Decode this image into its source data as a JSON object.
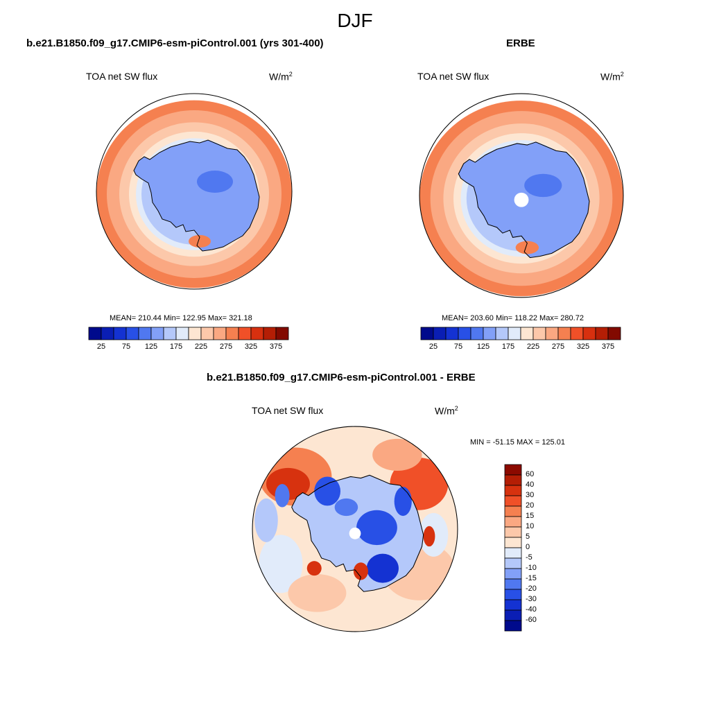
{
  "title": "DJF",
  "panels": [
    {
      "title": "b.e21.B1850.f09_g17.CMIP6-esm-piControl.001 (yrs 301-400)",
      "variable": "TOA net SW flux",
      "units_base": "W/m",
      "units_exp": "2",
      "stats": "MEAN= 210.44  Min= 122.95  Max= 321.18"
    },
    {
      "title": "ERBE",
      "variable": "TOA net SW flux",
      "units_base": "W/m",
      "units_exp": "2",
      "stats": "MEAN= 203.60  Min= 118.22  Max= 280.72"
    },
    {
      "title": "b.e21.B1850.f09_g17.CMIP6-esm-piControl.001 - ERBE",
      "variable": "TOA net SW flux",
      "units_base": "W/m",
      "units_exp": "2",
      "stats": "MIN = -51.15 MAX = 125.01"
    }
  ],
  "field_colorbar": {
    "labels": [
      "25",
      "75",
      "125",
      "175",
      "225",
      "275",
      "325",
      "375"
    ],
    "colors": [
      "#000a8c",
      "#0a1eb4",
      "#1432d2",
      "#2850e6",
      "#5078f0",
      "#82a0f8",
      "#b4c8fa",
      "#e1ebfa",
      "#fde6d2",
      "#fcc8aa",
      "#faa882",
      "#f58050",
      "#f05028",
      "#d7300f",
      "#b41e05",
      "#820a00"
    ]
  },
  "diff_colorbar": {
    "labels": [
      "60",
      "40",
      "30",
      "20",
      "15",
      "10",
      "5",
      "0",
      "-5",
      "-10",
      "-15",
      "-20",
      "-30",
      "-40",
      "-60"
    ],
    "colors": [
      "#8c0a00",
      "#b41e05",
      "#d7320f",
      "#f05028",
      "#f58050",
      "#faa882",
      "#fcc8aa",
      "#fde6d2",
      "#e1ebfa",
      "#b4c8fa",
      "#82a0f8",
      "#5078f0",
      "#2850e6",
      "#1432d2",
      "#0a1eb4",
      "#000a8c"
    ]
  }
}
